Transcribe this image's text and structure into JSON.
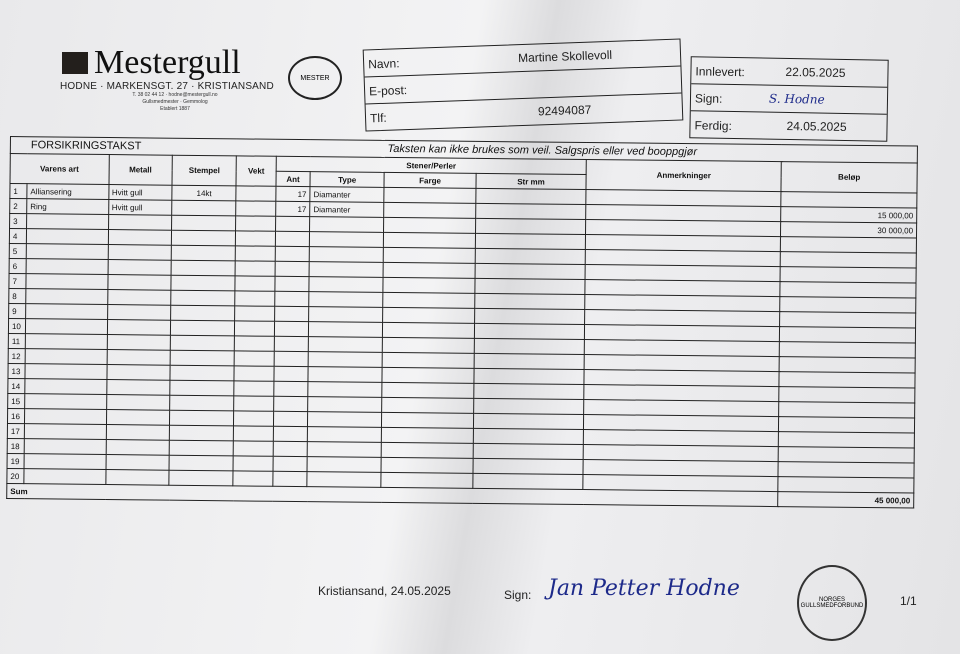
{
  "header": {
    "brand": "Mestergull",
    "address": "HODNE · MARKENSGT. 27 · KRISTIANSAND",
    "contact": "T. 38 02 44 12 · hodne@mestergull.no",
    "title_line": "Gullsmedmester · Gemmolog",
    "established": "Etablert 1887",
    "guild_logo_text": "MESTER"
  },
  "customer": {
    "name_label": "Navn:",
    "name": "Martine Skollevoll",
    "email_label": "E-post:",
    "email": "",
    "phone_label": "Tlf:",
    "phone": "92494087"
  },
  "dates": {
    "received_label": "Innlevert:",
    "received": "22.05.2025",
    "sign_label": "Sign:",
    "sign": "S. Hodne",
    "done_label": "Ferdig:",
    "done": "24.05.2025"
  },
  "form": {
    "title": "FORSIKRINGSTAKST",
    "notice": "Taksten kan ikke brukes som veil. Salgspris eller ved booppgjør",
    "columns": {
      "item": "Varens art",
      "metal": "Metall",
      "stamp": "Stempel",
      "weight": "Vekt",
      "stones": "Stener/Perler",
      "count": "Ant",
      "type": "Type",
      "color": "Farge",
      "size": "Str mm",
      "remarks": "Anmerkninger",
      "amount": "Beløp"
    },
    "rows": [
      {
        "no": "1",
        "item": "Alliansering",
        "metal": "Hvitt gull",
        "stamp": "14kt",
        "weight": "",
        "count": "17",
        "type": "Diamanter",
        "color": "",
        "size": "",
        "remarks": "",
        "amount": ""
      },
      {
        "no": "2",
        "item": "Ring",
        "metal": "Hvitt gull",
        "stamp": "",
        "weight": "",
        "count": "17",
        "type": "Diamanter",
        "color": "",
        "size": "",
        "remarks": "",
        "amount": "15 000,00"
      },
      {
        "no": "3",
        "item": "",
        "metal": "",
        "stamp": "",
        "weight": "",
        "count": "",
        "type": "",
        "color": "",
        "size": "",
        "remarks": "",
        "amount": "30 000,00"
      },
      {
        "no": "4"
      },
      {
        "no": "5"
      },
      {
        "no": "6"
      },
      {
        "no": "7"
      },
      {
        "no": "8"
      },
      {
        "no": "9"
      },
      {
        "no": "10"
      },
      {
        "no": "11"
      },
      {
        "no": "12"
      },
      {
        "no": "13"
      },
      {
        "no": "14"
      },
      {
        "no": "15"
      },
      {
        "no": "16"
      },
      {
        "no": "17"
      },
      {
        "no": "18"
      },
      {
        "no": "19"
      },
      {
        "no": "20"
      }
    ],
    "sum_label": "Sum",
    "sum": "45 000,00"
  },
  "footer": {
    "place_date": "Kristiansand, 24.05.2025",
    "sign_label": "Sign:",
    "signature": "Jan Petter Hodne",
    "page": "1/1",
    "stamp_text": "NORGES GULLSMEDFORBUND"
  }
}
